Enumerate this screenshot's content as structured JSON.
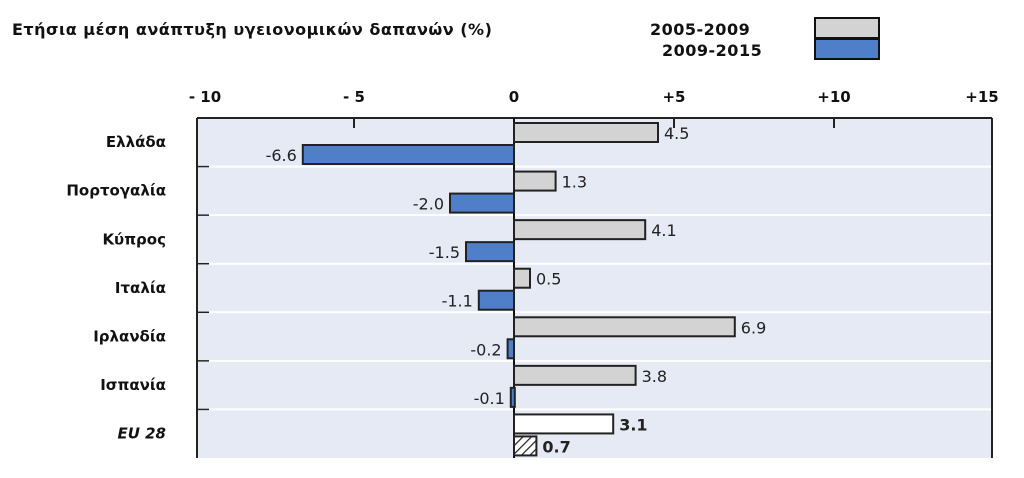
{
  "chart_data": {
    "type": "bar",
    "orientation": "horizontal",
    "title": "Ετήσια μέση ανάπτυξη υγειονομικών δαπανών (%)",
    "xlim": [
      -10,
      15
    ],
    "x_ticks": [
      {
        "value": -10,
        "label": "- 10"
      },
      {
        "value": -5,
        "label": "- 5"
      },
      {
        "value": 0,
        "label": "0"
      },
      {
        "value": 5,
        "label": "+5"
      },
      {
        "value": 10,
        "label": "+10"
      },
      {
        "value": 15,
        "label": "+15"
      }
    ],
    "categories": [
      "Ελλάδα",
      "Πορτογαλία",
      "Κύπρος",
      "Ιταλία",
      "Ιρλανδία",
      "Ισπανία",
      "EU 28"
    ],
    "series": [
      {
        "name": "2005-2009",
        "color": "#d3d3d3",
        "values": [
          4.5,
          1.3,
          4.1,
          0.5,
          6.9,
          3.8,
          3.1
        ],
        "labels": [
          "4.5",
          "1.3",
          "4.1",
          "0.5",
          "6.9",
          "3.8",
          "3.1"
        ]
      },
      {
        "name": "2009-2015",
        "color": "#4f7fc8",
        "values": [
          -6.6,
          -2.0,
          -1.5,
          -1.1,
          -0.2,
          -0.1,
          0.7
        ],
        "labels": [
          "-6.6",
          "-2.0",
          "-1.5",
          "-1.1",
          "-0.2",
          "-0.1",
          "0.7"
        ]
      }
    ],
    "eu_bar_style": {
      "2005-2009": "#ffffff",
      "2009-2015": "hatched"
    },
    "plot_background": "#e6eaf5",
    "grid": false,
    "legend_position": "top-right"
  }
}
